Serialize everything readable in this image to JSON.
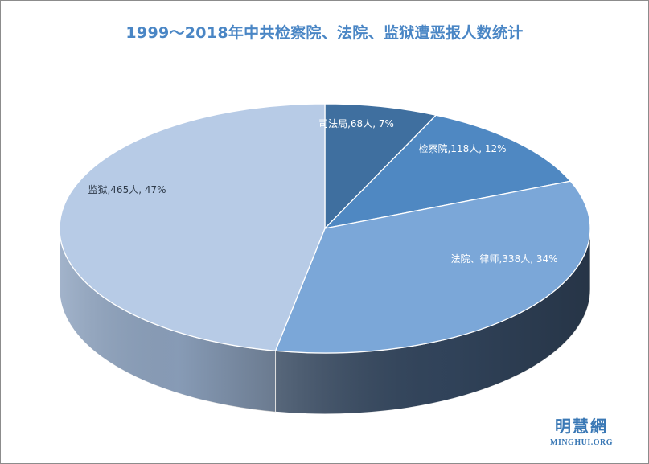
{
  "chart_data": {
    "type": "pie",
    "title": "1999～2018年中共检察院、法院、监狱遭恶报人数统计",
    "slices": [
      {
        "category": "司法局",
        "value": 68,
        "unit": "人",
        "percent": "7%",
        "color": "#3f6f9f",
        "side": "#2b4e73",
        "text": "#ffffff"
      },
      {
        "category": "检察院",
        "value": 118,
        "unit": "人",
        "percent": "12%",
        "color": "#4f88c2",
        "side": "#36618e",
        "text": "#ffffff"
      },
      {
        "category": "法院、律师",
        "value": 338,
        "unit": "人",
        "percent": "34%",
        "color": "#7ba7d8",
        "side": "#33465e",
        "text": "#ffffff"
      },
      {
        "category": "监狱",
        "value": 465,
        "unit": "人",
        "percent": "47%",
        "color": "#b7cbe6",
        "side": "#8ea3bf",
        "text": "#2f3b4a"
      }
    ],
    "style": "3d"
  },
  "logo": {
    "cn": "明慧網",
    "en": "MINGHUI.ORG",
    "color": "#3a78b5"
  }
}
